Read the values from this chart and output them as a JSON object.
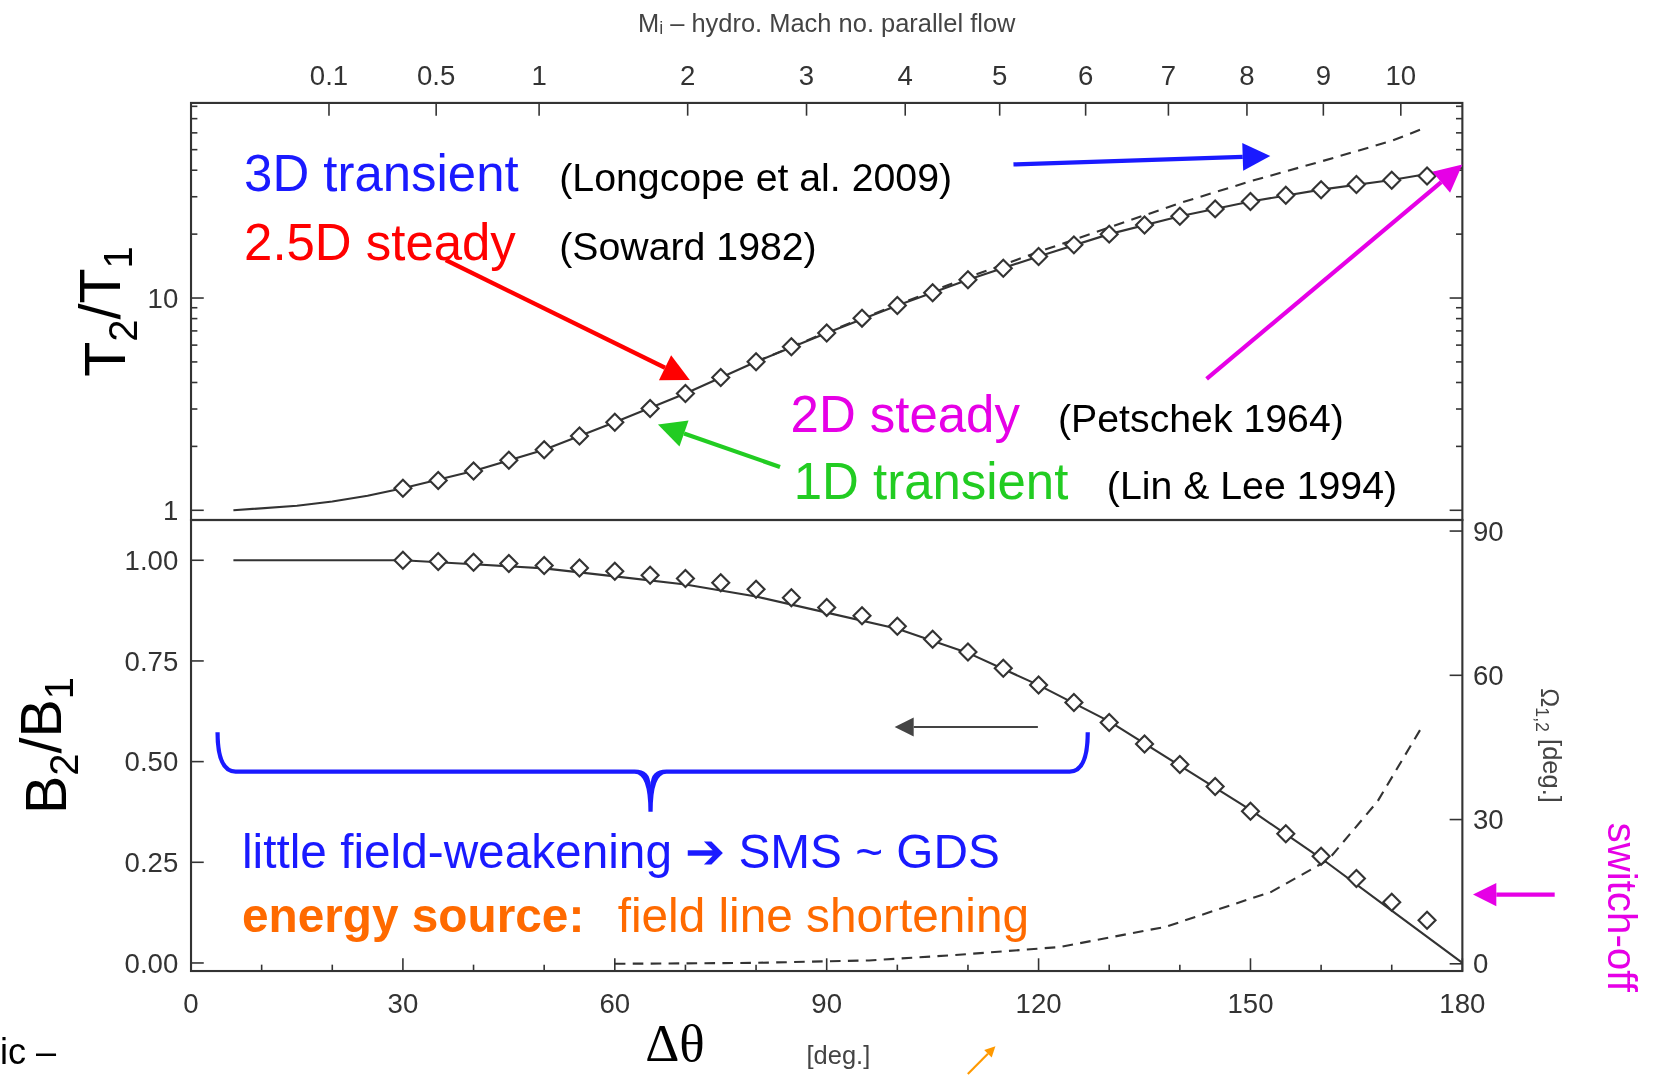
{
  "chart_data": [
    {
      "type": "line",
      "xlim": [
        0,
        180
      ],
      "x2label": "Mᵢ – hydro. Mach no. parallel flow",
      "ylim": [
        0.9,
        83
      ],
      "log": true,
      "yticks": [
        1,
        {
          "value": 2,
          "label": null
        },
        {
          "value": 3,
          "label": null
        },
        {
          "value": 4,
          "label": null
        },
        {
          "value": 5,
          "label": null
        },
        {
          "value": 6,
          "label": null
        },
        {
          "value": 7,
          "label": null
        },
        {
          "value": 8,
          "label": null
        },
        {
          "value": 9,
          "label": null
        },
        10,
        {
          "value": 20,
          "label": null
        },
        {
          "value": 30,
          "label": null
        },
        {
          "value": 40,
          "label": null
        },
        {
          "value": 50,
          "label": null
        },
        {
          "value": 60,
          "label": null
        },
        {
          "value": 70,
          "label": null
        },
        {
          "value": 80,
          "label": null
        }
      ],
      "ylabel": "T$_{2}$/T$_{1}$",
      "tick_labels": "y",
      "annotations": [
        "3D transient",
        "(Longcope et al. 2009)",
        "2.5D steady",
        "(Soward 1982)",
        "2D steady",
        "(Petschek 1964)",
        "1D transient",
        "(Lin & Lee 1994)",
        "0.1",
        "0.5",
        "1",
        "2",
        "3",
        "4",
        "5",
        "6",
        "7",
        "8",
        "9",
        "10"
      ],
      "series": [
        {
          "type": "line",
          "color": "#333333",
          "line_style": "solid",
          "x": [
            6,
            15,
            20,
            25,
            30,
            40,
            50,
            60,
            70,
            80,
            90,
            100,
            110,
            120,
            130,
            140,
            150,
            160,
            170,
            180
          ],
          "values": [
            1.0,
            1.05,
            1.1,
            1.17,
            1.27,
            1.53,
            1.93,
            2.6,
            3.55,
            5.01,
            6.84,
            9.23,
            12.2,
            15.7,
            20.0,
            24.3,
            28.5,
            32.4,
            36,
            41
          ]
        },
        {
          "type": "line",
          "color": "#333333",
          "line_style": "dashed",
          "x": [
            80,
            90,
            100,
            110,
            120,
            130,
            140,
            150,
            160,
            170,
            174
          ],
          "values": [
            5.01,
            6.9,
            9.3,
            12.5,
            16.5,
            21.5,
            28,
            35.5,
            44,
            55,
            62
          ]
        },
        {
          "type": "scatter",
          "color": "#333333",
          "marker": "diamond",
          "x": [
            30,
            35,
            40,
            45,
            50,
            55,
            60,
            65,
            70,
            75,
            80,
            85,
            90,
            95,
            100,
            105,
            110,
            115,
            120,
            125,
            130,
            135,
            140,
            145,
            150,
            155,
            160,
            165,
            170,
            175
          ],
          "values": [
            1.27,
            1.38,
            1.53,
            1.72,
            1.93,
            2.24,
            2.6,
            3.02,
            3.55,
            4.22,
            5.01,
            5.89,
            6.84,
            8.04,
            9.23,
            10.6,
            12.2,
            13.8,
            15.7,
            17.8,
            20.0,
            22.1,
            24.3,
            26.3,
            28.5,
            30.5,
            32.4,
            34.3,
            35.9,
            37.6
          ]
        }
      ]
    },
    {
      "type": "line",
      "xlim": [
        0,
        180
      ],
      "xticks": [
        0,
        {
          "value": 10,
          "label": null
        },
        {
          "value": 20,
          "label": null
        },
        30,
        {
          "value": 40,
          "label": null
        },
        {
          "value": 50,
          "label": null
        },
        60,
        {
          "value": 70,
          "label": null
        },
        {
          "value": 80,
          "label": null
        },
        90,
        {
          "value": 100,
          "label": null
        },
        {
          "value": 110,
          "label": null
        },
        120,
        {
          "value": 130,
          "label": null
        },
        {
          "value": 140,
          "label": null
        },
        150,
        {
          "value": 160,
          "label": null
        },
        {
          "value": 170,
          "label": null
        },
        180
      ],
      "ylim": [
        -0.02,
        1.1
      ],
      "yticks": [
        {
          "value": 0,
          "label": "0.00"
        },
        {
          "value": 0.25,
          "label": "0.25"
        },
        {
          "value": 0.5,
          "label": "0.50"
        },
        {
          "value": 0.75,
          "label": "0.75"
        },
        {
          "value": 1,
          "label": "1.00"
        }
      ],
      "y2lim": [
        -1.5,
        92.3
      ],
      "y2ticks": [
        0,
        30,
        60,
        90
      ],
      "y2label": "Ω$_{1,2}$ [deg.]",
      "ylabel": "B$_{2}$/B$_{1}$",
      "xlabel": "Δθ",
      "annotations": [
        "little field-weakening ➔ SMS ~ GDS",
        "energy source:",
        "field line shortening",
        "[deg.]",
        "switch-off",
        "ic –"
      ],
      "series": [
        {
          "type": "line",
          "color": "#333333",
          "line_style": "solid",
          "x": [
            6,
            20,
            30,
            40,
            50,
            60,
            70,
            80,
            90,
            100,
            110,
            120,
            130,
            140,
            150,
            160,
            170,
            180
          ],
          "values": [
            1.0,
            1.0,
            1.0,
            0.99,
            0.98,
            0.96,
            0.94,
            0.91,
            0.87,
            0.83,
            0.77,
            0.69,
            0.6,
            0.49,
            0.38,
            0.26,
            0.13,
            0.0
          ]
        },
        {
          "type": "line",
          "color": "#333333",
          "line_style": "dashed",
          "axis": "y2",
          "x": [
            60,
            80,
            96,
            108,
            123,
            138,
            153,
            161,
            168,
            174
          ],
          "values": [
            0,
            0.2,
            0.7,
            1.8,
            3.5,
            7.7,
            15,
            21.6,
            33.8,
            48.6
          ]
        },
        {
          "type": "scatter",
          "color": "#333333",
          "marker": "diamond",
          "x": [
            30,
            35,
            40,
            45,
            50,
            55,
            60,
            65,
            70,
            75,
            80,
            85,
            90,
            95,
            100,
            105,
            110,
            115,
            120,
            125,
            130,
            135,
            140,
            145,
            150,
            155,
            160,
            165,
            170,
            175
          ],
          "values": [
            1.0,
            0.997,
            0.995,
            0.992,
            0.987,
            0.981,
            0.973,
            0.963,
            0.955,
            0.944,
            0.928,
            0.907,
            0.883,
            0.862,
            0.836,
            0.804,
            0.772,
            0.732,
            0.69,
            0.647,
            0.597,
            0.544,
            0.493,
            0.438,
            0.377,
            0.321,
            0.265,
            0.21,
            0.151,
            0.106
          ]
        }
      ]
    }
  ]
}
